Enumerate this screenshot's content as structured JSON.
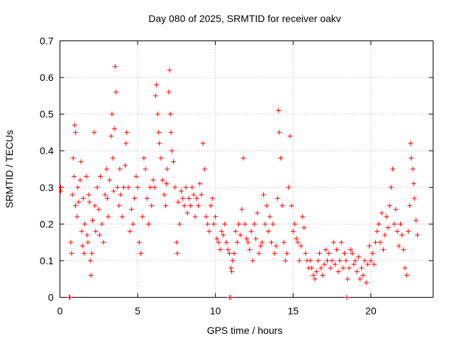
{
  "chart_data": {
    "type": "scatter",
    "title": "Day 080 of 2025, SRMTID for receiver oakv",
    "xlabel": "GPS time / hours",
    "ylabel": "SRMTID / TECUs",
    "xlim": [
      0,
      24
    ],
    "ylim": [
      0,
      0.7
    ],
    "xticks": [
      0,
      5,
      10,
      15,
      20
    ],
    "xtick_labels": [
      "0",
      "5",
      "10",
      "15",
      "20"
    ],
    "yticks": [
      0,
      0.1,
      0.2,
      0.3,
      0.4,
      0.5,
      0.6,
      0.7
    ],
    "ytick_labels": [
      "0",
      "0.1",
      "0.2",
      "0.3",
      "0.4",
      "0.5",
      "0.6",
      "0.7"
    ],
    "grid": true,
    "marker": "+",
    "color": "#ff0000",
    "series": [
      {
        "name": "SRMTID",
        "points": [
          [
            0.05,
            0.3
          ],
          [
            0.05,
            0.29
          ],
          [
            0.7,
            0.15
          ],
          [
            0.75,
            0.12
          ],
          [
            0.8,
            0.28
          ],
          [
            0.85,
            0.38
          ],
          [
            0.9,
            0.33
          ],
          [
            0.95,
            0.47
          ],
          [
            1.0,
            0.45
          ],
          [
            1.0,
            0.25
          ],
          [
            1.1,
            0.22
          ],
          [
            1.15,
            0.3
          ],
          [
            1.2,
            0.26
          ],
          [
            1.3,
            0.32
          ],
          [
            1.35,
            0.37
          ],
          [
            1.4,
            0.18
          ],
          [
            1.45,
            0.14
          ],
          [
            1.5,
            0.27
          ],
          [
            1.55,
            0.12
          ],
          [
            1.6,
            0.2
          ],
          [
            1.7,
            0.33
          ],
          [
            1.75,
            0.17
          ],
          [
            1.8,
            0.15
          ],
          [
            1.85,
            0.28
          ],
          [
            1.9,
            0.26
          ],
          [
            1.95,
            0.1
          ],
          [
            2.0,
            0.06
          ],
          [
            2.05,
            0.12
          ],
          [
            2.1,
            0.21
          ],
          [
            2.2,
            0.45
          ],
          [
            2.25,
            0.25
          ],
          [
            2.3,
            0.18
          ],
          [
            2.4,
            0.3
          ],
          [
            2.5,
            0.24
          ],
          [
            2.55,
            0.17
          ],
          [
            2.6,
            0.33
          ],
          [
            2.7,
            0.2
          ],
          [
            2.8,
            0.15
          ],
          [
            2.9,
            0.28
          ],
          [
            3.0,
            0.35
          ],
          [
            3.05,
            0.27
          ],
          [
            3.1,
            0.22
          ],
          [
            3.2,
            0.32
          ],
          [
            3.3,
            0.44
          ],
          [
            3.35,
            0.5
          ],
          [
            3.4,
            0.38
          ],
          [
            3.45,
            0.29
          ],
          [
            3.5,
            0.46
          ],
          [
            3.55,
            0.63
          ],
          [
            3.6,
            0.56
          ],
          [
            3.7,
            0.3
          ],
          [
            3.8,
            0.25
          ],
          [
            3.85,
            0.35
          ],
          [
            3.9,
            0.28
          ],
          [
            4.0,
            0.22
          ],
          [
            4.1,
            0.3
          ],
          [
            4.2,
            0.36
          ],
          [
            4.25,
            0.42
          ],
          [
            4.3,
            0.45
          ],
          [
            4.4,
            0.3
          ],
          [
            4.5,
            0.18
          ],
          [
            4.6,
            0.24
          ],
          [
            4.7,
            0.2
          ],
          [
            4.8,
            0.27
          ],
          [
            4.9,
            0.33
          ],
          [
            5.0,
            0.3
          ],
          [
            5.1,
            0.15
          ],
          [
            5.2,
            0.12
          ],
          [
            5.3,
            0.22
          ],
          [
            5.4,
            0.38
          ],
          [
            5.5,
            0.35
          ],
          [
            5.6,
            0.27
          ],
          [
            5.7,
            0.2
          ],
          [
            5.8,
            0.3
          ],
          [
            5.9,
            0.25
          ],
          [
            6.0,
            0.32
          ],
          [
            6.1,
            0.3
          ],
          [
            6.15,
            0.55
          ],
          [
            6.2,
            0.58
          ],
          [
            6.3,
            0.5
          ],
          [
            6.35,
            0.45
          ],
          [
            6.4,
            0.42
          ],
          [
            6.5,
            0.38
          ],
          [
            6.6,
            0.32
          ],
          [
            6.7,
            0.28
          ],
          [
            6.8,
            0.25
          ],
          [
            6.85,
            0.31
          ],
          [
            6.9,
            0.35
          ],
          [
            7.0,
            0.56
          ],
          [
            7.05,
            0.62
          ],
          [
            7.1,
            0.5
          ],
          [
            7.15,
            0.45
          ],
          [
            7.2,
            0.4
          ],
          [
            7.3,
            0.37
          ],
          [
            7.4,
            0.3
          ],
          [
            7.5,
            0.15
          ],
          [
            7.55,
            0.12
          ],
          [
            7.6,
            0.26
          ],
          [
            7.7,
            0.2
          ],
          [
            7.8,
            0.29
          ],
          [
            7.9,
            0.27
          ],
          [
            8.0,
            0.25
          ],
          [
            8.1,
            0.3
          ],
          [
            8.2,
            0.23
          ],
          [
            8.3,
            0.27
          ],
          [
            8.4,
            0.25
          ],
          [
            8.5,
            0.3
          ],
          [
            8.6,
            0.28
          ],
          [
            8.7,
            0.22
          ],
          [
            8.8,
            0.27
          ],
          [
            8.9,
            0.25
          ],
          [
            9.0,
            0.31
          ],
          [
            9.1,
            0.28
          ],
          [
            9.2,
            0.42
          ],
          [
            9.3,
            0.35
          ],
          [
            9.4,
            0.22
          ],
          [
            9.5,
            0.2
          ],
          [
            9.6,
            0.18
          ],
          [
            9.7,
            0.25
          ],
          [
            9.8,
            0.27
          ],
          [
            9.9,
            0.2
          ],
          [
            10.0,
            0.22
          ],
          [
            10.1,
            0.16
          ],
          [
            10.2,
            0.15
          ],
          [
            10.3,
            0.13
          ],
          [
            10.4,
            0.18
          ],
          [
            10.5,
            0.17
          ],
          [
            10.6,
            0.2
          ],
          [
            10.7,
            0.15
          ],
          [
            10.8,
            0.13
          ],
          [
            10.9,
            0.12
          ],
          [
            11.0,
            0.08
          ],
          [
            11.05,
            0.07
          ],
          [
            11.1,
            0.1
          ],
          [
            11.2,
            0.12
          ],
          [
            11.3,
            0.18
          ],
          [
            11.4,
            0.15
          ],
          [
            11.5,
            0.2
          ],
          [
            11.6,
            0.17
          ],
          [
            11.7,
            0.24
          ],
          [
            11.8,
            0.38
          ],
          [
            11.9,
            0.2
          ],
          [
            12.0,
            0.16
          ],
          [
            12.1,
            0.15
          ],
          [
            12.2,
            0.13
          ],
          [
            12.3,
            0.18
          ],
          [
            12.4,
            0.1
          ],
          [
            12.5,
            0.2
          ],
          [
            12.6,
            0.16
          ],
          [
            12.7,
            0.23
          ],
          [
            12.8,
            0.12
          ],
          [
            12.9,
            0.14
          ],
          [
            13.0,
            0.15
          ],
          [
            13.1,
            0.28
          ],
          [
            13.2,
            0.2
          ],
          [
            13.3,
            0.25
          ],
          [
            13.4,
            0.18
          ],
          [
            13.5,
            0.22
          ],
          [
            13.6,
            0.15
          ],
          [
            13.7,
            0.2
          ],
          [
            13.8,
            0.12
          ],
          [
            13.9,
            0.14
          ],
          [
            14.0,
            0.27
          ],
          [
            14.05,
            0.51
          ],
          [
            14.1,
            0.45
          ],
          [
            14.2,
            0.38
          ],
          [
            14.3,
            0.25
          ],
          [
            14.4,
            0.15
          ],
          [
            14.5,
            0.1
          ],
          [
            14.6,
            0.12
          ],
          [
            14.7,
            0.3
          ],
          [
            14.8,
            0.44
          ],
          [
            14.9,
            0.25
          ],
          [
            15.0,
            0.18
          ],
          [
            15.1,
            0.2
          ],
          [
            15.2,
            0.16
          ],
          [
            15.3,
            0.15
          ],
          [
            15.4,
            0.1
          ],
          [
            15.5,
            0.14
          ],
          [
            15.6,
            0.22
          ],
          [
            15.7,
            0.19
          ],
          [
            15.8,
            0.12
          ],
          [
            15.9,
            0.1
          ],
          [
            16.0,
            0.08
          ],
          [
            16.1,
            0.1
          ],
          [
            16.2,
            0.08
          ],
          [
            16.3,
            0.06
          ],
          [
            16.4,
            0.05
          ],
          [
            16.5,
            0.07
          ],
          [
            16.6,
            0.1
          ],
          [
            16.7,
            0.12
          ],
          [
            16.8,
            0.08
          ],
          [
            16.9,
            0.06
          ],
          [
            17.0,
            0.09
          ],
          [
            17.1,
            0.13
          ],
          [
            17.2,
            0.1
          ],
          [
            17.3,
            0.12
          ],
          [
            17.4,
            0.08
          ],
          [
            17.5,
            0.1
          ],
          [
            17.6,
            0.15
          ],
          [
            17.7,
            0.09
          ],
          [
            17.8,
            0.13
          ],
          [
            17.9,
            0.07
          ],
          [
            18.0,
            0.1
          ],
          [
            18.1,
            0.15
          ],
          [
            18.2,
            0.08
          ],
          [
            18.3,
            0.12
          ],
          [
            18.4,
            0.1
          ],
          [
            18.5,
            0.05
          ],
          [
            18.6,
            0.08
          ],
          [
            18.7,
            0.13
          ],
          [
            18.8,
            0.12
          ],
          [
            18.9,
            0.09
          ],
          [
            19.0,
            0.1
          ],
          [
            19.1,
            0.07
          ],
          [
            19.2,
            0.11
          ],
          [
            19.3,
            0.05
          ],
          [
            19.4,
            0.08
          ],
          [
            19.5,
            0.06
          ],
          [
            19.6,
            0.1
          ],
          [
            19.7,
            0.04
          ],
          [
            19.8,
            0.09
          ],
          [
            19.9,
            0.14
          ],
          [
            20.0,
            0.1
          ],
          [
            20.1,
            0.12
          ],
          [
            20.2,
            0.09
          ],
          [
            20.3,
            0.15
          ],
          [
            20.4,
            0.18
          ],
          [
            20.5,
            0.2
          ],
          [
            20.6,
            0.15
          ],
          [
            20.7,
            0.23
          ],
          [
            20.8,
            0.13
          ],
          [
            20.9,
            0.17
          ],
          [
            21.0,
            0.22
          ],
          [
            21.1,
            0.19
          ],
          [
            21.2,
            0.25
          ],
          [
            21.3,
            0.3
          ],
          [
            21.4,
            0.35
          ],
          [
            21.5,
            0.2
          ],
          [
            21.6,
            0.24
          ],
          [
            21.7,
            0.18
          ],
          [
            21.8,
            0.14
          ],
          [
            21.9,
            0.2
          ],
          [
            22.0,
            0.17
          ],
          [
            22.1,
            0.13
          ],
          [
            22.2,
            0.08
          ],
          [
            22.3,
            0.06
          ],
          [
            22.4,
            0.18
          ],
          [
            22.5,
            0.25
          ],
          [
            22.55,
            0.42
          ],
          [
            22.6,
            0.38
          ],
          [
            22.7,
            0.35
          ],
          [
            22.75,
            0.31
          ],
          [
            22.8,
            0.27
          ],
          [
            22.9,
            0.21
          ],
          [
            23.0,
            0.17
          ]
        ]
      }
    ],
    "axis_markers": [
      0.6,
      0.65,
      10.9,
      11.0,
      18.45
    ]
  }
}
